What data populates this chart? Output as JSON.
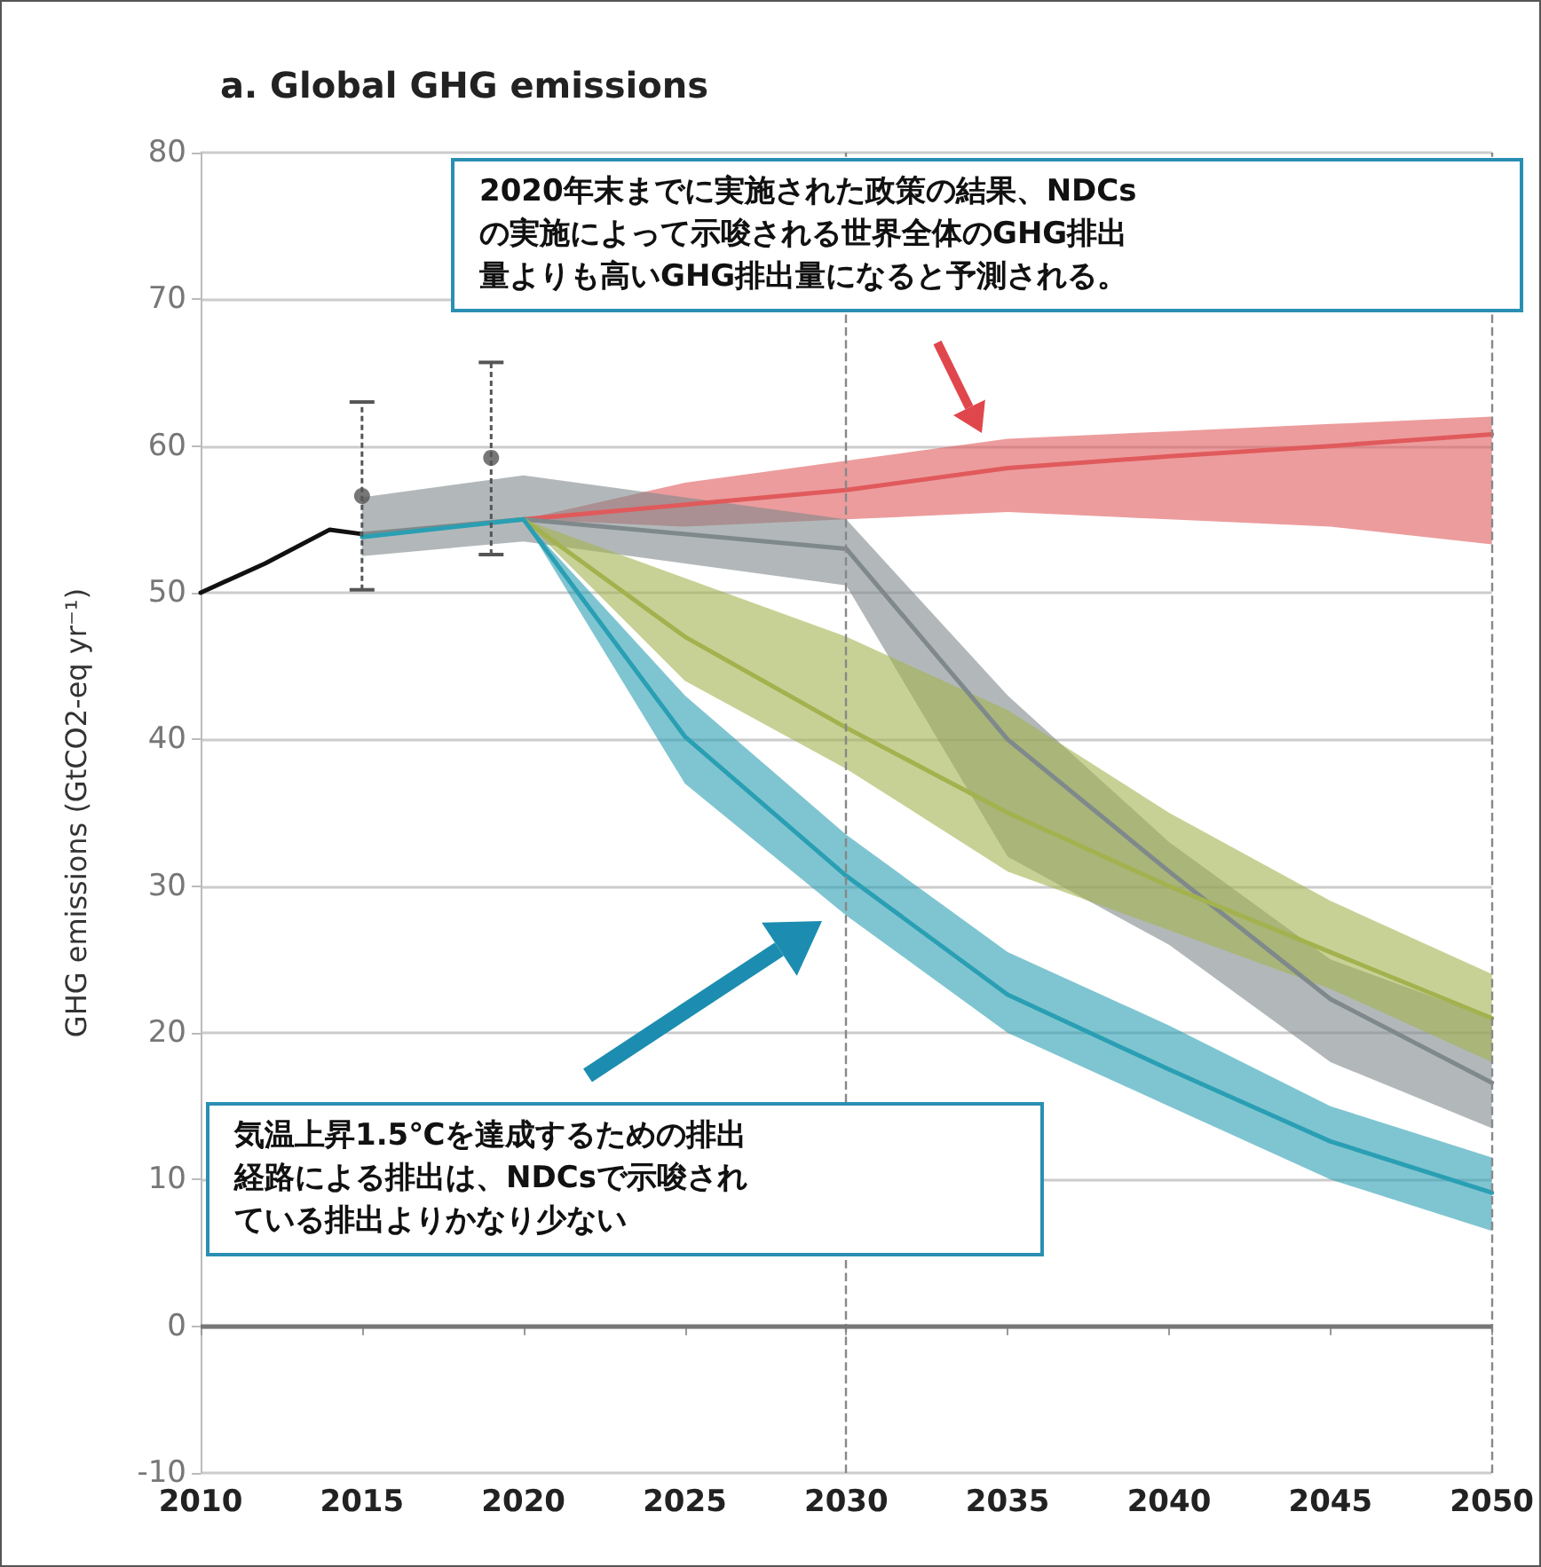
{
  "chart_data": {
    "type": "line",
    "title": "a. Global GHG emissions",
    "ylabel": "GHG emissions (GtCO2-eq yr⁻¹)",
    "xlim": [
      2010,
      2050
    ],
    "xticks": [
      2010,
      2015,
      2020,
      2025,
      2030,
      2035,
      2040,
      2045,
      2050
    ],
    "ylim": [
      -10,
      80
    ],
    "yticks": [
      -10,
      0,
      10,
      20,
      30,
      40,
      50,
      60,
      70,
      80
    ],
    "grid": "y",
    "line_style": "solid",
    "series": [
      {
        "color": "#111111",
        "x": [
          2010,
          2012,
          2014,
          2015
        ],
        "values": [
          50,
          52,
          54.3,
          54
        ]
      },
      {
        "color": "#e05a5c",
        "x": [
          2020,
          2025,
          2030,
          2035,
          2040,
          2045,
          2050
        ],
        "values": [
          55,
          56,
          57,
          58.5,
          59.3,
          60,
          60.8
        ],
        "lower": [
          55,
          54.5,
          55,
          55.5,
          55,
          54.5,
          53.3
        ],
        "upper": [
          55,
          57.5,
          59,
          60.5,
          61,
          61.5,
          62
        ]
      },
      {
        "color": "#7f898b",
        "x": [
          2015,
          2020,
          2030,
          2035,
          2040,
          2045,
          2050
        ],
        "values": [
          54,
          55,
          53,
          40,
          31,
          22.3,
          16.6
        ],
        "lower": [
          52.5,
          53.5,
          50.5,
          32,
          26,
          18,
          13.5
        ],
        "upper": [
          56.5,
          58,
          55,
          43,
          33,
          25,
          21
        ]
      },
      {
        "color": "#a3b24e",
        "x": [
          2020,
          2025,
          2030,
          2035,
          2040,
          2045,
          2050
        ],
        "values": [
          55,
          47,
          40.8,
          35,
          30,
          25.5,
          21
        ],
        "lower": [
          55,
          44,
          38,
          31,
          27,
          23,
          18
        ],
        "upper": [
          55,
          51,
          47,
          42,
          35,
          29,
          24
        ]
      },
      {
        "color": "#2a9fb3",
        "x": [
          2015,
          2020,
          2025,
          2030,
          2035,
          2040,
          2045,
          2050
        ],
        "values": [
          53.8,
          55,
          40.2,
          30.7,
          22.6,
          17.5,
          12.6,
          9.1
        ],
        "lower": [
          53.8,
          55,
          37,
          28,
          20,
          15,
          10,
          6.5
        ],
        "upper": [
          53.8,
          55,
          43,
          33.5,
          25.5,
          20.5,
          15,
          11.5
        ]
      },
      {
        "type": "scatter",
        "marker": "circle",
        "color": "#555555",
        "x": [
          2015,
          2019
        ],
        "values": [
          56.6,
          59.2
        ],
        "errors": [
          [
            50.2,
            63
          ],
          [
            52.6,
            65.7
          ]
        ]
      }
    ],
    "ref_lines": [
      {
        "axis": "x",
        "value": 2030,
        "line_style": "dashed",
        "color": "#888888"
      },
      {
        "axis": "x",
        "value": 2050,
        "line_style": "dashed",
        "color": "#888888"
      },
      {
        "axis": "y",
        "value": 0,
        "line_style": "solid",
        "color": "#777777"
      }
    ],
    "annotations": [
      "2020年末までに実施された政策の結果、NDCsの実施によって示唆される世界全体のGHG排出量よりも高いGHG排出量になると予測される。",
      "気温上昇1.5℃を達成するための排出経路による排出は、NDCsで示唆されている排出よりかなり少ない"
    ]
  }
}
